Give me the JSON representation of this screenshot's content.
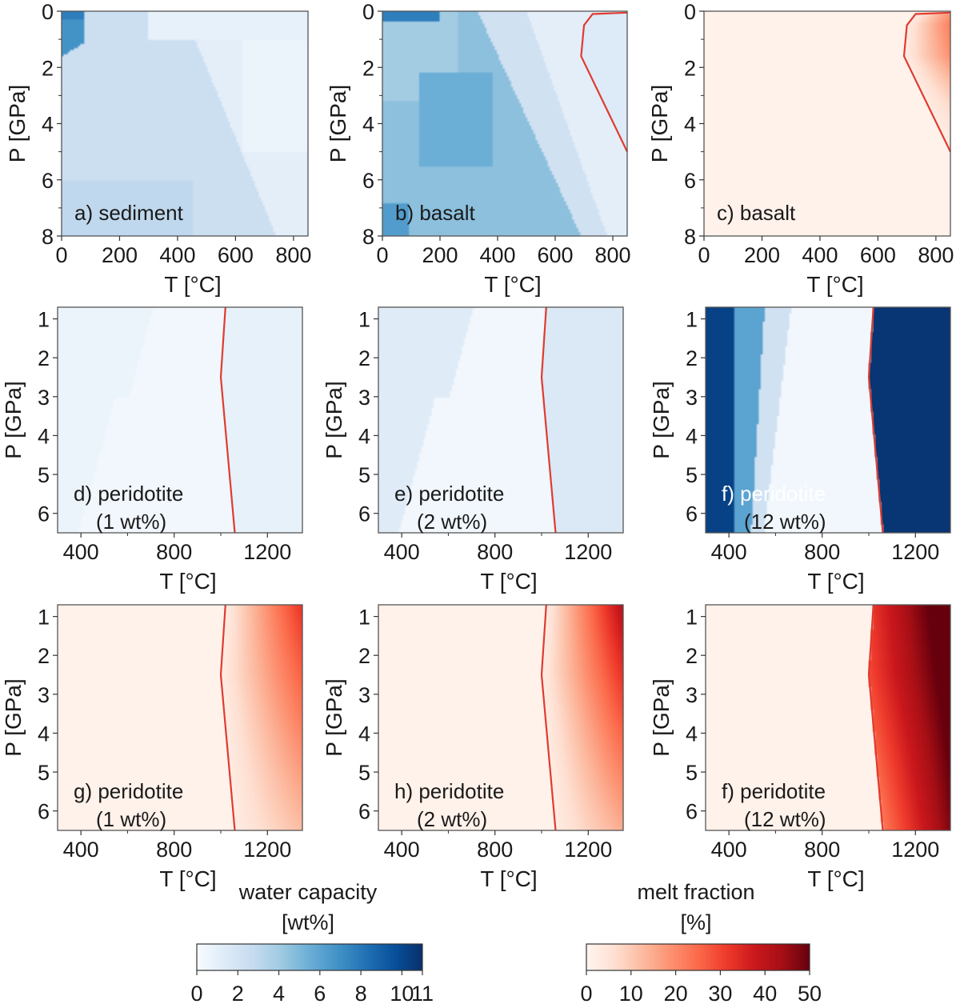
{
  "chart_data": [
    {
      "id": "a",
      "type": "heatmap",
      "quantity": "water capacity [wt%]",
      "cmap": "blues",
      "label": [
        "a) sediment"
      ],
      "xlabel": "T [°C]",
      "ylabel": "P [GPa]",
      "xlim": [
        0,
        850
      ],
      "ylim": [
        8,
        0
      ],
      "xticks": [
        "0",
        "200",
        "400",
        "600",
        "800"
      ],
      "yticks": [
        "0",
        "2",
        "4",
        "6",
        "8"
      ],
      "boundary": null,
      "mode": "sediment"
    },
    {
      "id": "b",
      "type": "heatmap",
      "quantity": "water capacity [wt%]",
      "cmap": "blues",
      "label": [
        "b) basalt"
      ],
      "xlabel": "T [°C]",
      "ylabel": "P [GPa]",
      "xlim": [
        0,
        850
      ],
      "ylim": [
        8,
        0
      ],
      "xticks": [
        "0",
        "200",
        "400",
        "600",
        "800"
      ],
      "yticks": [
        "0",
        "2",
        "4",
        "6",
        "8"
      ],
      "boundary": [
        [
          850,
          0.05
        ],
        [
          730,
          0.1
        ],
        [
          700,
          0.5
        ],
        [
          690,
          1.6
        ],
        [
          850,
          5.0
        ]
      ],
      "mode": "basalt"
    },
    {
      "id": "c",
      "type": "heatmap",
      "quantity": "melt fraction [%]",
      "cmap": "reds",
      "label": [
        "c) basalt"
      ],
      "xlabel": "T [°C]",
      "ylabel": "P [GPa]",
      "xlim": [
        0,
        850
      ],
      "ylim": [
        8,
        0
      ],
      "xticks": [
        "0",
        "200",
        "400",
        "600",
        "800"
      ],
      "yticks": [
        "0",
        "2",
        "4",
        "6",
        "8"
      ],
      "boundary": [
        [
          850,
          0.05
        ],
        [
          730,
          0.1
        ],
        [
          700,
          0.5
        ],
        [
          690,
          1.6
        ],
        [
          850,
          5.0
        ]
      ],
      "mode": "melt_basalt"
    },
    {
      "id": "d",
      "type": "heatmap",
      "quantity": "water capacity [wt%]",
      "cmap": "blues",
      "label": [
        "d) peridotite",
        "(1 wt%)"
      ],
      "xlabel": "T [°C]",
      "ylabel": "P [GPa]",
      "xlim": [
        300,
        1350
      ],
      "ylim": [
        6.5,
        0.7
      ],
      "xticks": [
        "400",
        "800",
        "1200"
      ],
      "yticks": [
        "1",
        "2",
        "3",
        "4",
        "5",
        "6"
      ],
      "boundary": [
        [
          1020,
          0.7
        ],
        [
          1000,
          2.5
        ],
        [
          1060,
          6.5
        ]
      ],
      "mode": "per1"
    },
    {
      "id": "e",
      "type": "heatmap",
      "quantity": "water capacity [wt%]",
      "cmap": "blues",
      "label": [
        "e) peridotite",
        "(2 wt%)"
      ],
      "xlabel": "T [°C]",
      "ylabel": "P [GPa]",
      "xlim": [
        300,
        1350
      ],
      "ylim": [
        6.5,
        0.7
      ],
      "xticks": [
        "400",
        "800",
        "1200"
      ],
      "yticks": [
        "1",
        "2",
        "3",
        "4",
        "5",
        "6"
      ],
      "boundary": [
        [
          1020,
          0.7
        ],
        [
          1000,
          2.5
        ],
        [
          1060,
          6.5
        ]
      ],
      "mode": "per2"
    },
    {
      "id": "f1",
      "type": "heatmap",
      "quantity": "water capacity [wt%]",
      "cmap": "blues",
      "label": [
        "f) peridotite",
        "(12 wt%)"
      ],
      "xlabel": "T [°C]",
      "ylabel": "P [GPa]",
      "xlim": [
        300,
        1350
      ],
      "ylim": [
        6.5,
        0.7
      ],
      "xticks": [
        "400",
        "800",
        "1200"
      ],
      "yticks": [
        "1",
        "2",
        "3",
        "4",
        "5",
        "6"
      ],
      "boundary": [
        [
          1020,
          0.7
        ],
        [
          1000,
          2.5
        ],
        [
          1060,
          6.5
        ]
      ],
      "mode": "per12"
    },
    {
      "id": "g",
      "type": "heatmap",
      "quantity": "melt fraction [%]",
      "cmap": "reds",
      "label": [
        "g) peridotite",
        "(1 wt%)"
      ],
      "xlabel": "T [°C]",
      "ylabel": "P [GPa]",
      "xlim": [
        300,
        1350
      ],
      "ylim": [
        6.5,
        0.7
      ],
      "xticks": [
        "400",
        "800",
        "1200"
      ],
      "yticks": [
        "1",
        "2",
        "3",
        "4",
        "5",
        "6"
      ],
      "boundary": [
        [
          1020,
          0.7
        ],
        [
          1000,
          2.5
        ],
        [
          1060,
          6.5
        ]
      ],
      "mode": "melt1"
    },
    {
      "id": "h",
      "type": "heatmap",
      "quantity": "melt fraction [%]",
      "cmap": "reds",
      "label": [
        "h) peridotite",
        "(2 wt%)"
      ],
      "xlabel": "T [°C]",
      "ylabel": "P [GPa]",
      "xlim": [
        300,
        1350
      ],
      "ylim": [
        6.5,
        0.7
      ],
      "xticks": [
        "400",
        "800",
        "1200"
      ],
      "yticks": [
        "1",
        "2",
        "3",
        "4",
        "5",
        "6"
      ],
      "boundary": [
        [
          1020,
          0.7
        ],
        [
          1000,
          2.5
        ],
        [
          1060,
          6.5
        ]
      ],
      "mode": "melt2"
    },
    {
      "id": "f2",
      "type": "heatmap",
      "quantity": "melt fraction [%]",
      "cmap": "reds",
      "label": [
        "f) peridotite",
        "(12 wt%)"
      ],
      "xlabel": "T [°C]",
      "ylabel": "P [GPa]",
      "xlim": [
        300,
        1350
      ],
      "ylim": [
        6.5,
        0.7
      ],
      "xticks": [
        "400",
        "800",
        "1200"
      ],
      "yticks": [
        "1",
        "2",
        "3",
        "4",
        "5",
        "6"
      ],
      "boundary": [
        [
          1020,
          0.7
        ],
        [
          1000,
          2.5
        ],
        [
          1060,
          6.5
        ]
      ],
      "mode": "melt12"
    }
  ],
  "colorbars": [
    {
      "id": "water",
      "title": [
        "water capacity",
        "[wt%]"
      ],
      "cmap": "blues",
      "range": [
        0,
        11
      ],
      "ticks": [
        "0",
        "2",
        "4",
        "6",
        "8",
        "10",
        "11"
      ]
    },
    {
      "id": "melt",
      "title": [
        "melt fraction",
        "[%]"
      ],
      "cmap": "reds",
      "range": [
        0,
        50
      ],
      "ticks": [
        "0",
        "10",
        "20",
        "30",
        "40",
        "50"
      ]
    }
  ],
  "colors": {
    "boundary": "#e03b30",
    "blues": [
      "#f7fbff",
      "#deebf7",
      "#c6dbef",
      "#9ecae1",
      "#6baed6",
      "#4292c6",
      "#2171b5",
      "#08519c",
      "#08306b"
    ],
    "reds": [
      "#fff5f0",
      "#fee0d2",
      "#fcbba1",
      "#fc9272",
      "#fb6a4a",
      "#ef3b2c",
      "#cb181d",
      "#a50f15",
      "#67000d"
    ]
  }
}
